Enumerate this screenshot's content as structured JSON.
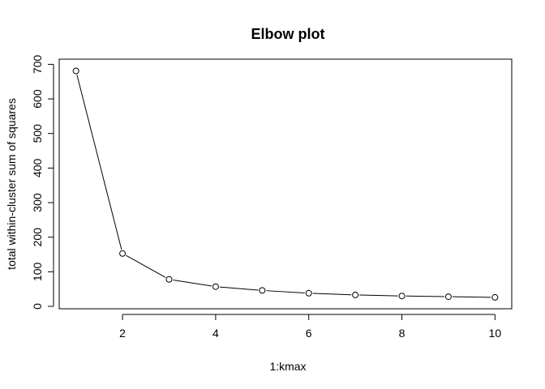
{
  "chart_data": {
    "type": "line",
    "title": "Elbow plot",
    "xlabel": "1:kmax",
    "ylabel": "total within-cluster sum of squares",
    "x": [
      1,
      2,
      3,
      4,
      5,
      6,
      7,
      8,
      9,
      10
    ],
    "series": [
      {
        "values": [
          681,
          153,
          78,
          57,
          46,
          38,
          33,
          30,
          28,
          26
        ]
      }
    ],
    "xlim": [
      0.64,
      10.36
    ],
    "ylim": [
      -7,
      715
    ],
    "xticks": [
      2,
      4,
      6,
      8,
      10
    ],
    "yticks": [
      0,
      100,
      200,
      300,
      400,
      500,
      600,
      700
    ],
    "grid": false,
    "legend": "none",
    "colors": {
      "line": "#000000",
      "point_stroke": "#000000",
      "point_fill": "#ffffff",
      "axis": "#000000"
    }
  }
}
